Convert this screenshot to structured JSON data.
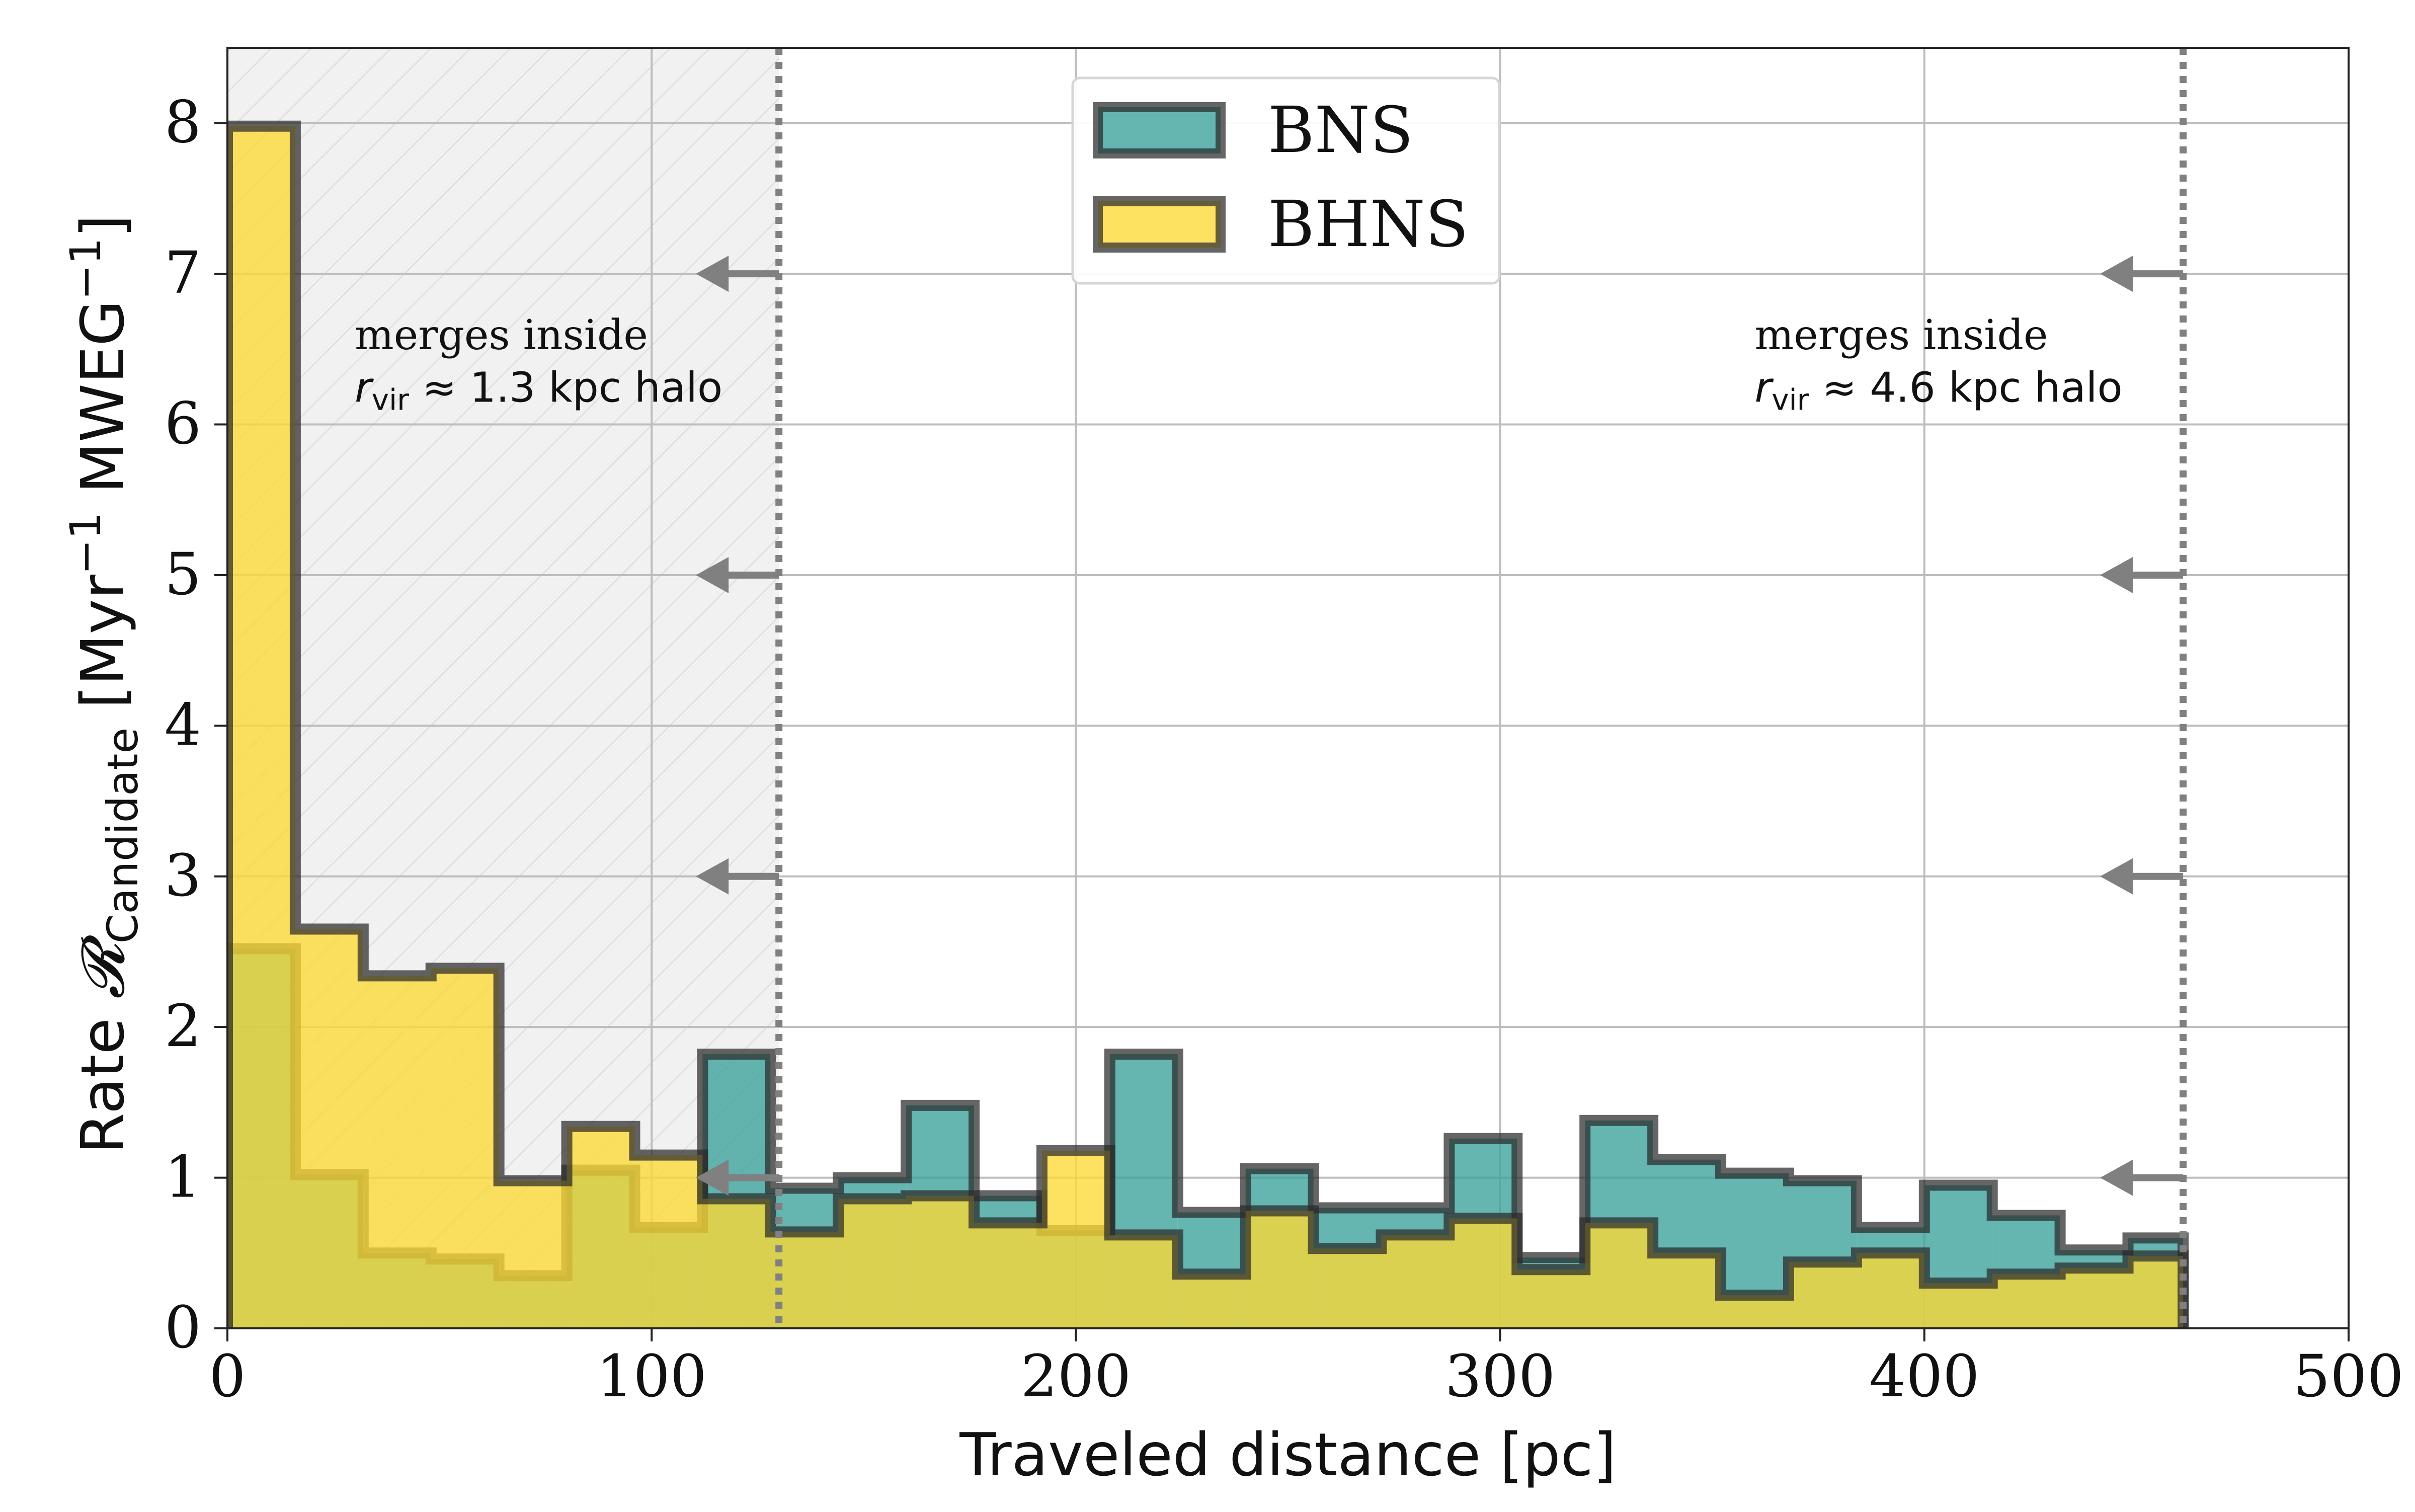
{
  "colors": {
    "bns": "#3aa09a",
    "bhns": "#fdd835",
    "edge": "#2a2a2a",
    "grid": "#bdbdbd",
    "shade": "#f1f1f1",
    "marker": "#808080"
  },
  "chart_data": {
    "type": "histogram",
    "xlabel": "Traveled distance [pc]",
    "ylabel": "Rate 𝓡Candidate [Myr−1 MWEG−1]",
    "ylabel_parts": {
      "prefix": "Rate ",
      "script_r": "𝓡",
      "sub": "Candidate",
      "bracket_open": " [Myr",
      "sup1": "−1",
      "mid": " MWEG",
      "sup2": "−1",
      "bracket_close": "]"
    },
    "xlim": [
      0,
      500
    ],
    "ylim": [
      0,
      8.5
    ],
    "xticks": [
      "0",
      "100",
      "200",
      "300",
      "400",
      "500"
    ],
    "yticks": [
      "0",
      "1",
      "2",
      "3",
      "4",
      "5",
      "6",
      "7",
      "8"
    ],
    "grid": true,
    "legend_position": "top-center",
    "bin_edges": [
      0,
      16,
      32,
      48,
      64,
      80,
      96,
      112,
      128,
      144,
      160,
      176,
      192,
      208,
      224,
      240,
      256,
      272,
      288,
      304,
      320,
      336,
      352,
      368,
      384,
      400,
      416,
      432,
      448,
      461
    ],
    "series": [
      {
        "name": "BNS",
        "values": [
          2.52,
          1.02,
          0.5,
          0.46,
          0.35,
          1.05,
          0.67,
          1.82,
          0.93,
          1.0,
          1.48,
          0.88,
          0.65,
          1.82,
          0.77,
          1.06,
          0.8,
          0.8,
          1.26,
          0.47,
          1.38,
          1.12,
          1.03,
          0.98,
          0.67,
          0.95,
          0.75,
          0.52,
          0.6
        ]
      },
      {
        "name": "BHNS",
        "values": [
          7.98,
          2.65,
          2.34,
          2.39,
          0.98,
          1.34,
          1.15,
          0.86,
          0.64,
          0.86,
          0.88,
          0.7,
          1.18,
          0.62,
          0.36,
          0.78,
          0.53,
          0.62,
          0.73,
          0.39,
          0.7,
          0.5,
          0.22,
          0.44,
          0.5,
          0.3,
          0.36,
          0.4,
          0.48
        ]
      }
    ],
    "shaded_region": [
      0,
      130
    ],
    "vertical_lines": [
      130,
      461
    ],
    "arrow_levels": [
      1,
      3,
      5,
      7
    ],
    "annotations": [
      {
        "line1": "merges inside",
        "r": "r",
        "sub": "vir",
        "rest": " ≈ 1.3 kpc halo",
        "x": 30,
        "y_line1": 6.5,
        "y_line2": 6.15
      },
      {
        "line1": "merges inside",
        "r": "r",
        "sub": "vir",
        "rest": " ≈ 4.6 kpc halo",
        "x": 360,
        "y_line1": 6.5,
        "y_line2": 6.15
      }
    ]
  }
}
